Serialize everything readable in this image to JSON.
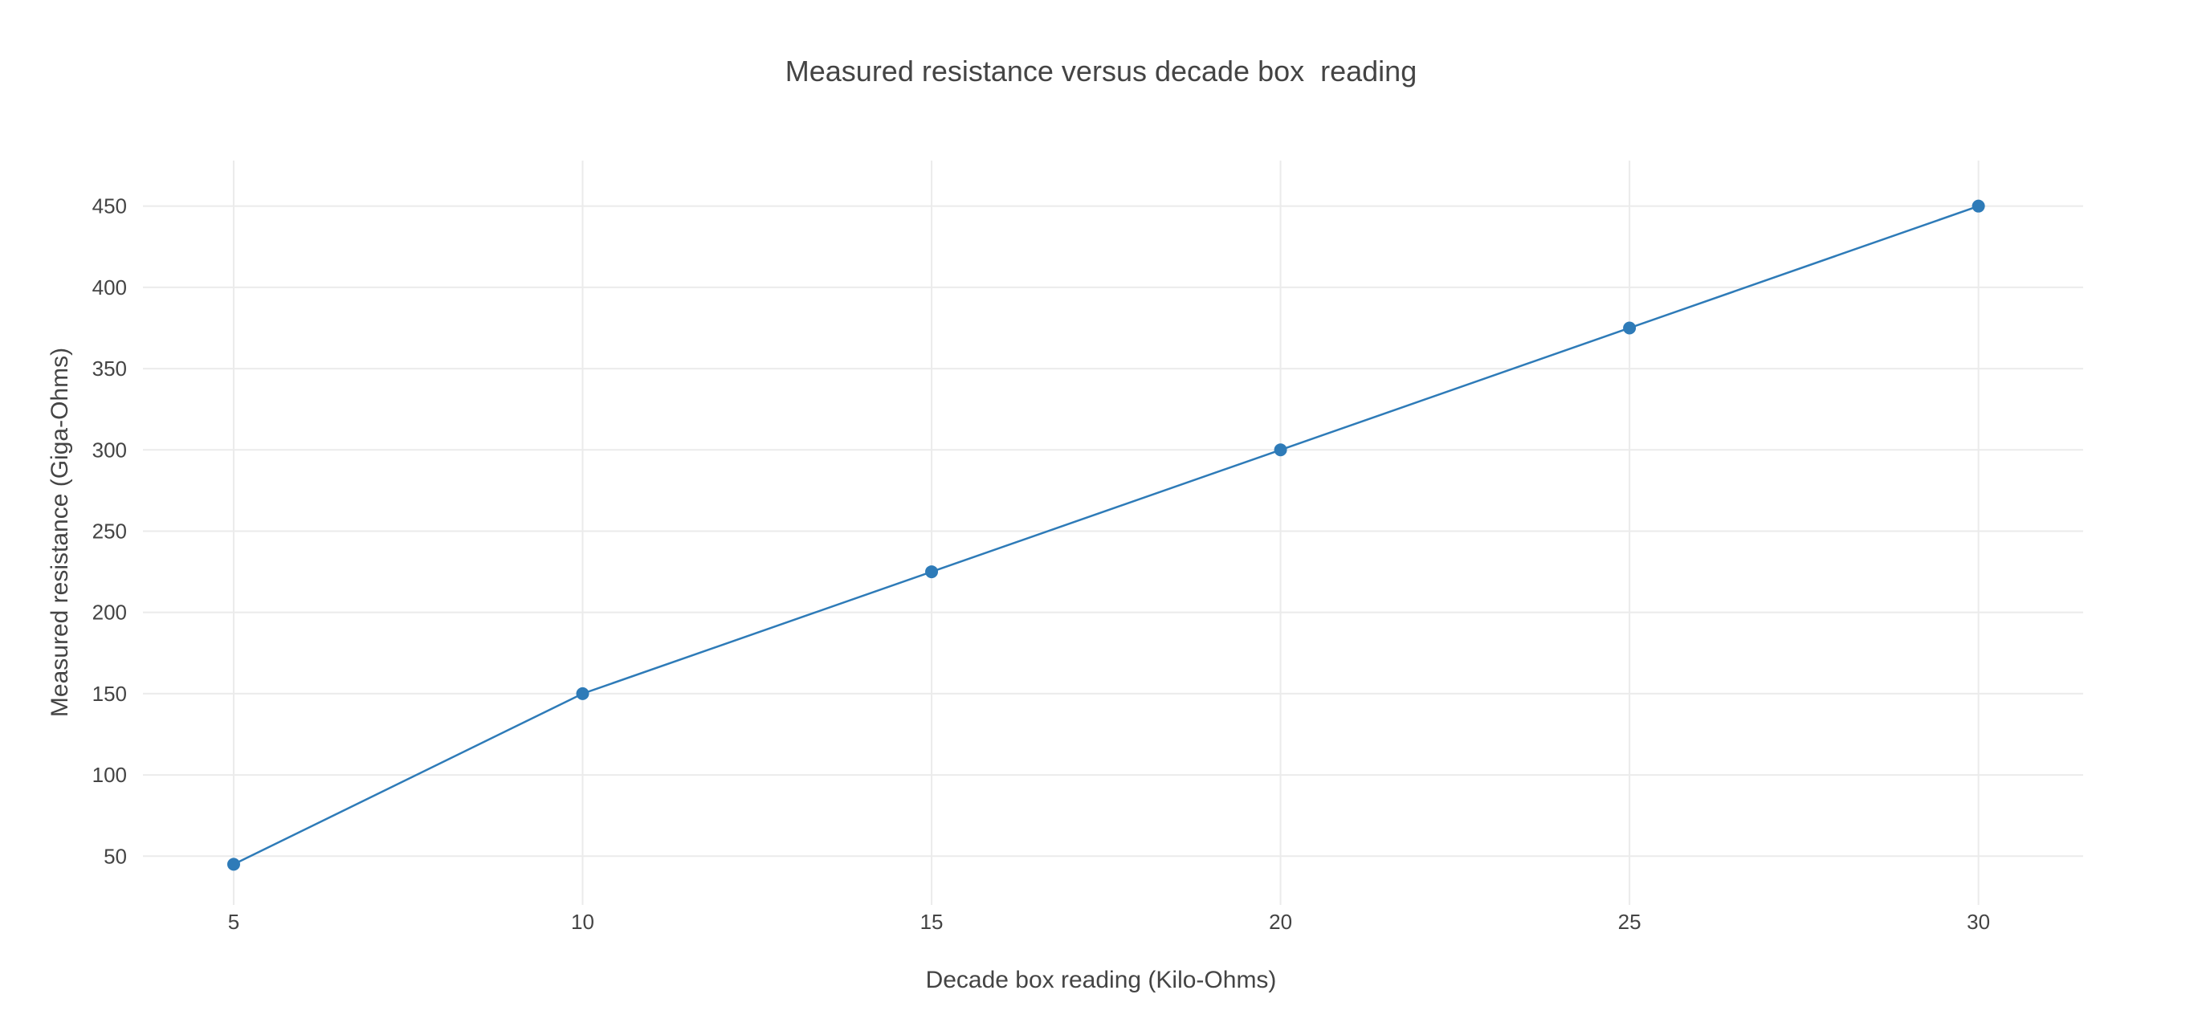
{
  "chart_data": {
    "type": "line",
    "title": "Measured resistance versus decade box  reading",
    "xlabel": "Decade box reading (Kilo-Ohms)",
    "ylabel": "Measured resistance (Giga-Ohms)",
    "x": [
      5,
      10,
      15,
      20,
      25,
      30
    ],
    "series": [
      {
        "values": [
          45,
          150,
          225,
          300,
          375,
          450
        ],
        "color": "#2e7bb8"
      }
    ],
    "xlim": [
      3.7,
      31.5
    ],
    "ylim": [
      20,
      478
    ],
    "xticks": [
      5,
      10,
      15,
      20,
      25,
      30
    ],
    "yticks": [
      50,
      100,
      150,
      200,
      250,
      300,
      350,
      400,
      450
    ],
    "grid": true,
    "legend": "none",
    "markers": true
  }
}
